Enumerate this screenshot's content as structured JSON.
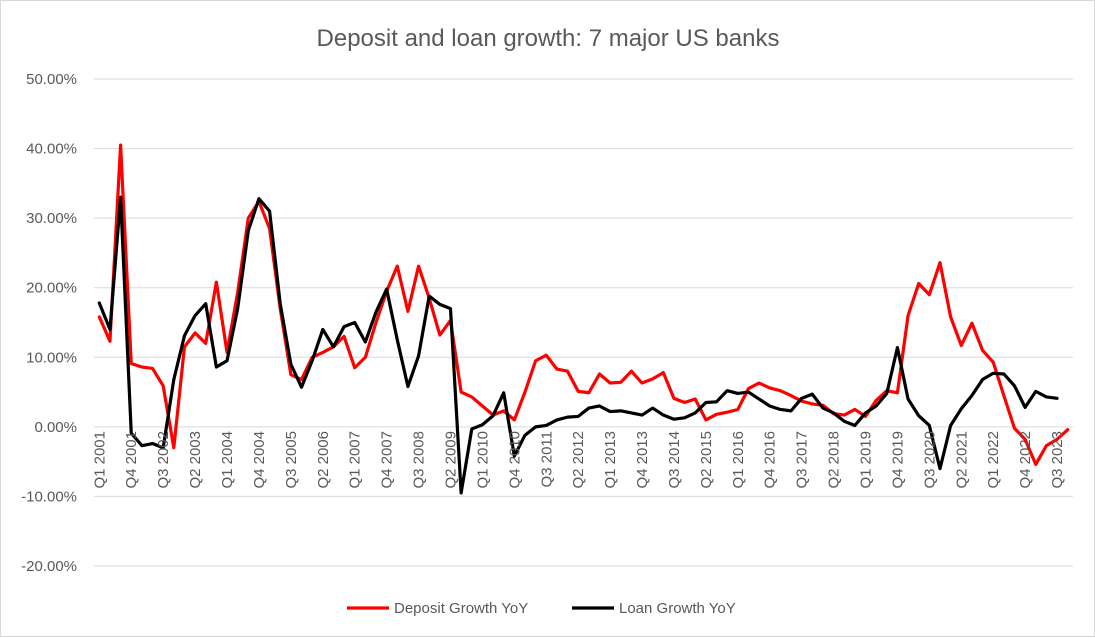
{
  "chart_data": {
    "type": "line",
    "title": "Deposit and loan growth: 7 major US banks",
    "xlabel": "",
    "ylabel": "",
    "ylim": [
      -0.2,
      0.5
    ],
    "yticks": [
      {
        "value": 0.5,
        "label": "50.00%"
      },
      {
        "value": 0.4,
        "label": "40.00%"
      },
      {
        "value": 0.3,
        "label": "30.00%"
      },
      {
        "value": 0.2,
        "label": "20.00%"
      },
      {
        "value": 0.1,
        "label": "10.00%"
      },
      {
        "value": 0.0,
        "label": "0.00%"
      },
      {
        "value": -0.1,
        "label": "-10.00%"
      },
      {
        "value": -0.2,
        "label": "-20.00%"
      }
    ],
    "xtick_labels": [
      {
        "index": 0,
        "label": "Q1 2001"
      },
      {
        "index": 3,
        "label": "Q4 2001"
      },
      {
        "index": 6,
        "label": "Q3 2002"
      },
      {
        "index": 9,
        "label": "Q2 2003"
      },
      {
        "index": 12,
        "label": "Q1 2004"
      },
      {
        "index": 15,
        "label": "Q4 2004"
      },
      {
        "index": 18,
        "label": "Q3 2005"
      },
      {
        "index": 21,
        "label": "Q2 2006"
      },
      {
        "index": 24,
        "label": "Q1 2007"
      },
      {
        "index": 27,
        "label": "Q4 2007"
      },
      {
        "index": 30,
        "label": "Q3 2008"
      },
      {
        "index": 33,
        "label": "Q2 2009"
      },
      {
        "index": 36,
        "label": "Q1 2010"
      },
      {
        "index": 39,
        "label": "Q4 2010"
      },
      {
        "index": 42,
        "label": "Q3 2011"
      },
      {
        "index": 45,
        "label": "Q2 2012"
      },
      {
        "index": 48,
        "label": "Q1 2013"
      },
      {
        "index": 51,
        "label": "Q4 2013"
      },
      {
        "index": 54,
        "label": "Q3 2014"
      },
      {
        "index": 57,
        "label": "Q2 2015"
      },
      {
        "index": 60,
        "label": "Q1 2016"
      },
      {
        "index": 63,
        "label": "Q4 2016"
      },
      {
        "index": 66,
        "label": "Q3 2017"
      },
      {
        "index": 69,
        "label": "Q2 2018"
      },
      {
        "index": 72,
        "label": "Q1 2019"
      },
      {
        "index": 75,
        "label": "Q4 2019"
      },
      {
        "index": 78,
        "label": "Q3 2020"
      },
      {
        "index": 81,
        "label": "Q2 2021"
      },
      {
        "index": 84,
        "label": "Q1 2022"
      },
      {
        "index": 87,
        "label": "Q4 2022"
      },
      {
        "index": 90,
        "label": "Q3 2023"
      }
    ],
    "legend_position": "bottom",
    "grid": true,
    "series": [
      {
        "name": "Deposit Growth YoY",
        "color": "#ff0000",
        "values": [
          0.158,
          0.123,
          0.405,
          0.091,
          0.086,
          0.084,
          0.059,
          -0.03,
          0.115,
          0.135,
          0.12,
          0.208,
          0.107,
          0.193,
          0.3,
          0.324,
          0.285,
          0.17,
          0.075,
          0.068,
          0.1,
          0.107,
          0.115,
          0.13,
          0.085,
          0.1,
          0.15,
          0.195,
          0.231,
          0.166,
          0.231,
          0.185,
          0.132,
          0.153,
          0.05,
          0.043,
          0.03,
          0.017,
          0.023,
          0.01,
          0.05,
          0.095,
          0.103,
          0.083,
          0.08,
          0.051,
          0.049,
          0.076,
          0.063,
          0.064,
          0.08,
          0.063,
          0.069,
          0.078,
          0.041,
          0.035,
          0.04,
          0.01,
          0.018,
          0.021,
          0.025,
          0.055,
          0.063,
          0.056,
          0.052,
          0.045,
          0.037,
          0.033,
          0.031,
          0.019,
          0.017,
          0.025,
          0.015,
          0.038,
          0.052,
          0.049,
          0.16,
          0.206,
          0.19,
          0.236,
          0.158,
          0.117,
          0.149,
          0.11,
          0.093,
          0.045,
          -0.002,
          -0.018,
          -0.054,
          -0.027,
          -0.018,
          -0.004
        ]
      },
      {
        "name": "Loan Growth YoY",
        "color": "#000000",
        "values": [
          0.178,
          0.14,
          0.33,
          -0.009,
          -0.027,
          -0.024,
          -0.03,
          0.068,
          0.131,
          0.16,
          0.177,
          0.086,
          0.095,
          0.17,
          0.282,
          0.328,
          0.31,
          0.177,
          0.09,
          0.057,
          0.095,
          0.14,
          0.115,
          0.144,
          0.15,
          0.122,
          0.165,
          0.198,
          0.125,
          0.058,
          0.102,
          0.188,
          0.176,
          0.17,
          -0.095,
          -0.003,
          0.003,
          0.016,
          0.049,
          -0.042,
          -0.012,
          0.0,
          0.002,
          0.01,
          0.014,
          0.015,
          0.027,
          0.03,
          0.022,
          0.023,
          0.02,
          0.017,
          0.027,
          0.017,
          0.011,
          0.013,
          0.02,
          0.035,
          0.036,
          0.052,
          0.048,
          0.05,
          0.04,
          0.03,
          0.025,
          0.023,
          0.041,
          0.047,
          0.027,
          0.02,
          0.008,
          0.002,
          0.02,
          0.03,
          0.048,
          0.114,
          0.04,
          0.016,
          0.002,
          -0.06,
          0.002,
          0.026,
          0.045,
          0.068,
          0.077,
          0.076,
          0.059,
          0.028,
          0.051,
          0.043,
          0.041
        ]
      }
    ]
  }
}
